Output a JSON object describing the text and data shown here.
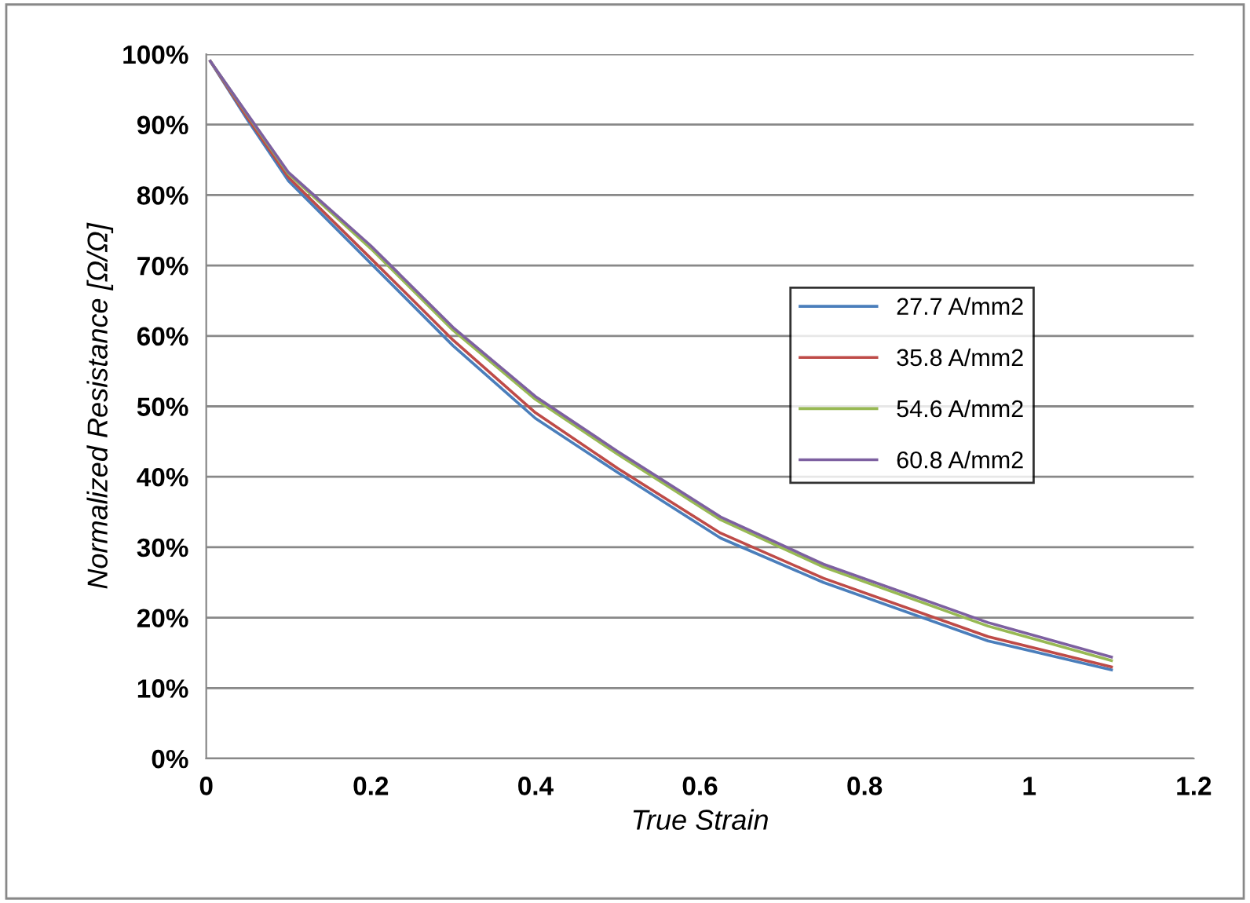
{
  "chart_data": {
    "type": "line",
    "xlabel": "True Strain",
    "ylabel": "Normalized Resistance [Ω/Ω]",
    "x": [
      0.005,
      0.05,
      0.1,
      0.2,
      0.3,
      0.4,
      0.5,
      0.625,
      0.75,
      0.95,
      1.1
    ],
    "series": [
      {
        "name": "27.7 A/mm2",
        "color": "#4a7ebb",
        "values": [
          99,
          90.7,
          82,
          70.3,
          58.6,
          48.3,
          40.6,
          31.3,
          25,
          16.7,
          12.6
        ]
      },
      {
        "name": "35.8 A/mm2",
        "color": "#be4b48",
        "values": [
          99,
          91,
          82.5,
          71,
          59.4,
          49.1,
          41.2,
          32,
          25.6,
          17.3,
          13
        ]
      },
      {
        "name": "54.6 A/mm2",
        "color": "#98b954",
        "values": [
          99,
          91.4,
          83,
          72.4,
          60.8,
          51,
          43.2,
          33.9,
          27.2,
          18.8,
          13.9
        ]
      },
      {
        "name": "60.8 A/mm2",
        "color": "#7d60a0",
        "values": [
          99,
          91.5,
          83.2,
          72.8,
          61.2,
          51.4,
          43.6,
          34.3,
          27.6,
          19.3,
          14.4
        ]
      }
    ],
    "xlim": [
      0,
      1.2
    ],
    "xticks": [
      0,
      0.2,
      0.4,
      0.6,
      0.8,
      1,
      1.2
    ],
    "ylim": [
      0,
      100
    ],
    "yticks": [
      {
        "value": 0,
        "label": "0%"
      },
      {
        "value": 10,
        "label": "10%"
      },
      {
        "value": 20,
        "label": "20%"
      },
      {
        "value": 30,
        "label": "30%"
      },
      {
        "value": 40,
        "label": "40%"
      },
      {
        "value": 50,
        "label": "50%"
      },
      {
        "value": 60,
        "label": "60%"
      },
      {
        "value": 70,
        "label": "70%"
      },
      {
        "value": 80,
        "label": "80%"
      },
      {
        "value": 90,
        "label": "90%"
      },
      {
        "value": 100,
        "label": "100%"
      }
    ],
    "grid": "y",
    "legend": "center right",
    "marker": "none",
    "line_style": "solid"
  }
}
